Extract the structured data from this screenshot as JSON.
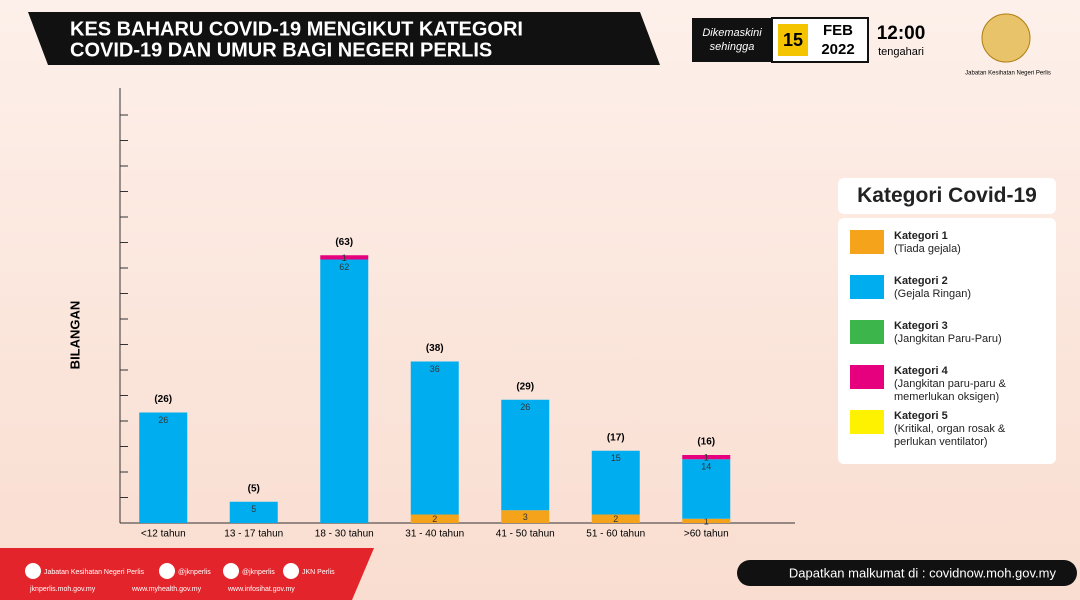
{
  "header": {
    "title_lines": [
      "KES BAHARU COVID-19 MENGIKUT KATEGORI",
      "COVID-19 DAN UMUR BAGI NEGERI PERLIS"
    ],
    "updated_label": [
      "Dikemaskini",
      "sehingga"
    ],
    "day": "15",
    "month": "FEB",
    "year": "2022",
    "time": "12:00",
    "time_note": "tengahari",
    "agency": "Jabatan Kesihatan Negeri Perlis"
  },
  "chart_data": {
    "type": "stacked_bar",
    "y_label": "BILANGAN",
    "categories": [
      "<12 tahun",
      "13 - 17 tahun",
      "18 - 30 tahun",
      "31 - 40 tahun",
      "41 - 50 tahun",
      "51 - 60 tahun",
      ">60 tahun"
    ],
    "series": [
      {
        "name": "Kategori 1",
        "description": "(Tiada gejala)",
        "color": "#f5a31a",
        "values": [
          null,
          null,
          null,
          2,
          3,
          2,
          1
        ]
      },
      {
        "name": "Kategori 2",
        "description": "(Gejala Ringan)",
        "color": "#00aeef",
        "values": [
          26,
          5,
          62,
          36,
          26,
          15,
          14
        ]
      },
      {
        "name": "Kategori 3",
        "description": "(Jangkitan Paru-Paru)",
        "color": "#3cb54a",
        "values": [
          null,
          null,
          null,
          null,
          null,
          null,
          null
        ]
      },
      {
        "name": "Kategori 4",
        "description": "(Jangkitan paru-paru & memerlukan oksigen)",
        "color": "#e6007e",
        "values": [
          null,
          null,
          1,
          null,
          null,
          null,
          1
        ]
      },
      {
        "name": "Kategori 5",
        "description": "(Kritikal, organ rosak & perlukan ventilator)",
        "color": "#fff200",
        "values": [
          null,
          null,
          null,
          null,
          null,
          null,
          null
        ]
      }
    ],
    "totals": {
      "values": [
        26,
        5,
        63,
        38,
        29,
        17,
        16
      ],
      "value_labels": [
        "(26)",
        "(5)",
        "(63)",
        "(38)",
        "(29)",
        "(17)",
        "(16)"
      ]
    },
    "ylim": [
      0,
      100
    ],
    "yticks": [
      0,
      6,
      12,
      18,
      24,
      30,
      36,
      42,
      48,
      54,
      60,
      66,
      72,
      78,
      84,
      90,
      96
    ]
  },
  "legend": {
    "title": "Kategori Covid-19"
  },
  "footer": {
    "social": [
      "Jabatan Kesihatan Negeri Perlis",
      "@jknperlis",
      "@jknperlis",
      "JKN Perlis"
    ],
    "sites": [
      "jknperlis.moh.gov.my",
      "www.myhealth.gov.my",
      "www.infosihat.gov.my"
    ],
    "info": "Dapatkan malkumat di : covidnow.moh.gov.my"
  }
}
